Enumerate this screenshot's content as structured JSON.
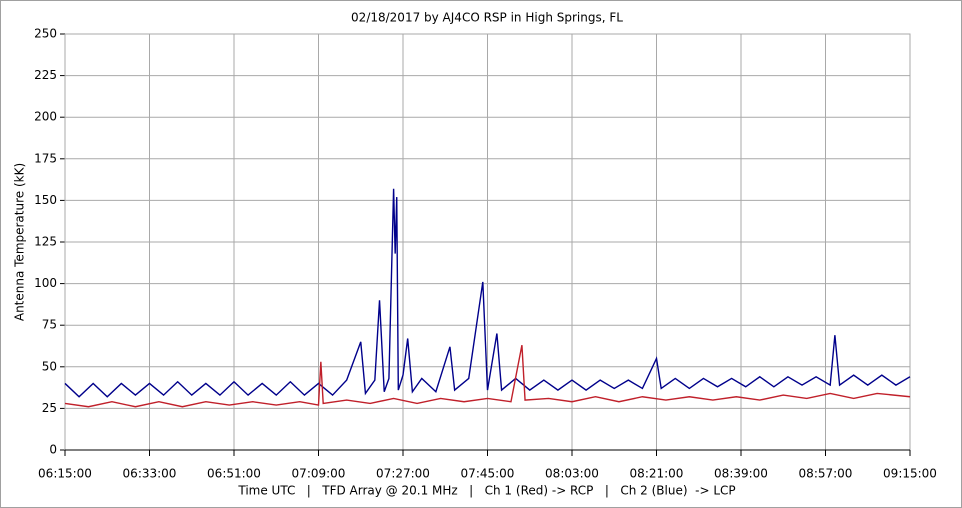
{
  "chart_data": {
    "type": "line",
    "title": "02/18/2017  by  AJ4CO RSP  in  High Springs, FL",
    "ylabel": "Antenna Temperature (kK)",
    "xlabel": "Time UTC   |   TFD Array @ 20.1 MHz   |   Ch 1 (Red) -> RCP   |   Ch 2 (Blue)  -> LCP",
    "xlim": [
      "06:15:00",
      "09:15:00"
    ],
    "xticks": [
      "06:15:00",
      "06:33:00",
      "06:51:00",
      "07:09:00",
      "07:27:00",
      "07:45:00",
      "08:03:00",
      "08:21:00",
      "08:39:00",
      "08:57:00",
      "09:15:00"
    ],
    "ylim": [
      0,
      250
    ],
    "yticks": [
      0,
      25,
      50,
      75,
      100,
      125,
      150,
      175,
      200,
      225,
      250
    ],
    "grid": true,
    "series": [
      {
        "color": "#00008b",
        "x": [
          "06:15:00",
          "06:18:00",
          "06:21:00",
          "06:24:00",
          "06:27:00",
          "06:30:00",
          "06:33:00",
          "06:36:00",
          "06:39:00",
          "06:42:00",
          "06:45:00",
          "06:48:00",
          "06:51:00",
          "06:54:00",
          "06:57:00",
          "07:00:00",
          "07:03:00",
          "07:06:00",
          "07:09:00",
          "07:12:00",
          "07:15:00",
          "07:18:00",
          "07:19:00",
          "07:21:00",
          "07:22:00",
          "07:23:00",
          "07:24:00",
          "07:25:00",
          "07:25:20",
          "07:25:40",
          "07:26:00",
          "07:27:00",
          "07:28:00",
          "07:29:00",
          "07:31:00",
          "07:34:00",
          "07:37:00",
          "07:38:00",
          "07:41:00",
          "07:44:00",
          "07:45:00",
          "07:47:00",
          "07:48:00",
          "07:51:00",
          "07:54:00",
          "07:57:00",
          "08:00:00",
          "08:03:00",
          "08:06:00",
          "08:09:00",
          "08:12:00",
          "08:15:00",
          "08:18:00",
          "08:21:00",
          "08:22:00",
          "08:25:00",
          "08:28:00",
          "08:31:00",
          "08:34:00",
          "08:37:00",
          "08:40:00",
          "08:43:00",
          "08:46:00",
          "08:49:00",
          "08:52:00",
          "08:55:00",
          "08:58:00",
          "08:59:00",
          "09:00:00",
          "09:03:00",
          "09:06:00",
          "09:09:00",
          "09:12:00",
          "09:15:00"
        ],
        "values": [
          40,
          32,
          40,
          32,
          40,
          33,
          40,
          33,
          41,
          33,
          40,
          33,
          41,
          33,
          40,
          33,
          41,
          33,
          40,
          33,
          42,
          65,
          34,
          42,
          90,
          35,
          43,
          157,
          118,
          152,
          36,
          45,
          67,
          35,
          43,
          35,
          62,
          36,
          43,
          101,
          36,
          70,
          36,
          43,
          36,
          42,
          36,
          42,
          36,
          42,
          37,
          42,
          37,
          55,
          37,
          43,
          37,
          43,
          38,
          43,
          38,
          44,
          38,
          44,
          39,
          44,
          39,
          69,
          39,
          45,
          39,
          45,
          39,
          44
        ]
      },
      {
        "color": "#c0202a",
        "x": [
          "06:15:00",
          "06:20:00",
          "06:25:00",
          "06:30:00",
          "06:35:00",
          "06:40:00",
          "06:45:00",
          "06:50:00",
          "06:55:00",
          "07:00:00",
          "07:05:00",
          "07:09:00",
          "07:09:30",
          "07:10:00",
          "07:15:00",
          "07:20:00",
          "07:25:00",
          "07:30:00",
          "07:35:00",
          "07:40:00",
          "07:45:00",
          "07:50:00",
          "07:52:20",
          "07:53:00",
          "07:58:00",
          "08:03:00",
          "08:08:00",
          "08:13:00",
          "08:18:00",
          "08:23:00",
          "08:28:00",
          "08:33:00",
          "08:38:00",
          "08:43:00",
          "08:48:00",
          "08:53:00",
          "08:58:00",
          "09:03:00",
          "09:08:00",
          "09:15:00"
        ],
        "values": [
          28,
          26,
          29,
          26,
          29,
          26,
          29,
          27,
          29,
          27,
          29,
          27,
          53,
          28,
          30,
          28,
          31,
          28,
          31,
          29,
          31,
          29,
          63,
          30,
          31,
          29,
          32,
          29,
          32,
          30,
          32,
          30,
          32,
          30,
          33,
          31,
          34,
          31,
          34,
          32
        ]
      }
    ]
  }
}
